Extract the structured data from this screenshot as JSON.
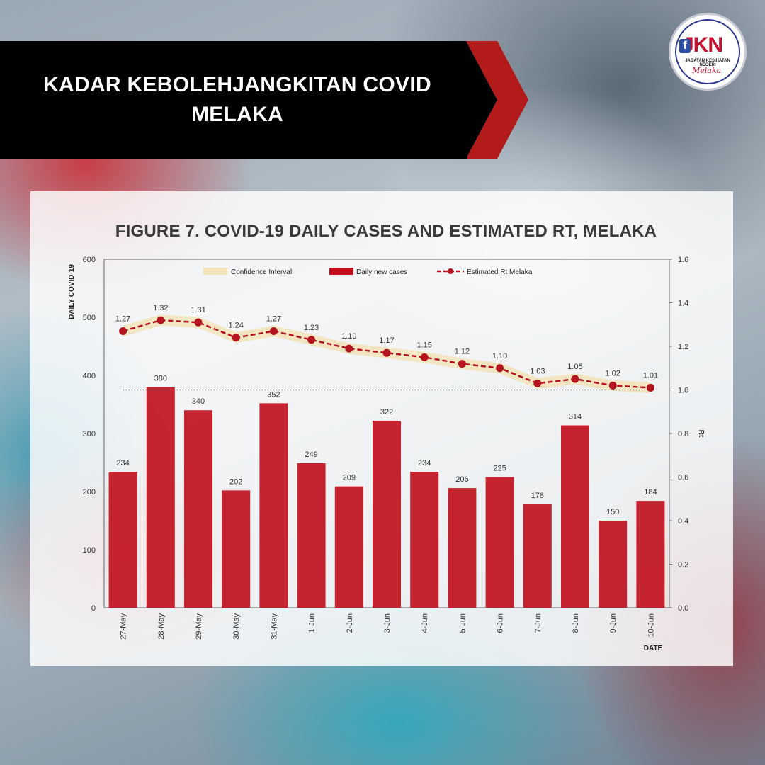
{
  "banner": {
    "title_line1": "KADAR KEBOLEHJANGKITAN COVID",
    "title_line2": "MELAKA"
  },
  "logo": {
    "name": "JKN",
    "subtitle": "JABATAN KESIHATAN NEGERI",
    "script": "Melaka"
  },
  "colors": {
    "bar": "#c0121e",
    "rt_line": "#b3141d",
    "ci_band": "#f2e3b8",
    "banner_bg": "#000000",
    "banner_accent": "#b31b1b"
  },
  "chart_data": {
    "type": "bar",
    "title": "FIGURE 7. COVID-19 DAILY CASES AND ESTIMATED RT, MELAKA",
    "categories": [
      "27-May",
      "28-May",
      "29-May",
      "30-May",
      "31-May",
      "1-Jun",
      "2-Jun",
      "3-Jun",
      "4-Jun",
      "5-Jun",
      "6-Jun",
      "7-Jun",
      "8-Jun",
      "9-Jun",
      "10-Jun"
    ],
    "series": [
      {
        "name": "Daily new cases",
        "type": "bar",
        "axis": "left",
        "values": [
          234,
          380,
          340,
          202,
          352,
          249,
          209,
          322,
          234,
          206,
          225,
          178,
          314,
          150,
          184
        ]
      },
      {
        "name": "Estimated Rt Melaka",
        "type": "line",
        "axis": "right",
        "values": [
          1.27,
          1.32,
          1.31,
          1.24,
          1.27,
          1.23,
          1.19,
          1.17,
          1.15,
          1.12,
          1.1,
          1.03,
          1.05,
          1.02,
          1.01
        ],
        "labels": [
          "1.27",
          "1.32",
          "1.31",
          "1.24",
          "1.27",
          "1.23",
          "1.19",
          "1.17",
          "1.15",
          "1.12",
          "1.10",
          "1.03",
          "1.05",
          "1.02",
          "1.01"
        ]
      }
    ],
    "confidence_interval": {
      "name": "Confidence Interval",
      "half_width": 0.025
    },
    "reference_line": 1.0,
    "ylabel": "DAILY COVID-19",
    "y2label": "Rt",
    "xlabel": "DATE",
    "ylim": [
      0,
      600
    ],
    "yticks": [
      0,
      100,
      200,
      300,
      400,
      500,
      600
    ],
    "y2lim": [
      0,
      1.6
    ],
    "y2ticks": [
      "0.0",
      "0.2",
      "0.4",
      "0.6",
      "0.8",
      "1.0",
      "1.2",
      "1.4",
      "1.6"
    ],
    "legend_position": "top",
    "grid": false
  }
}
